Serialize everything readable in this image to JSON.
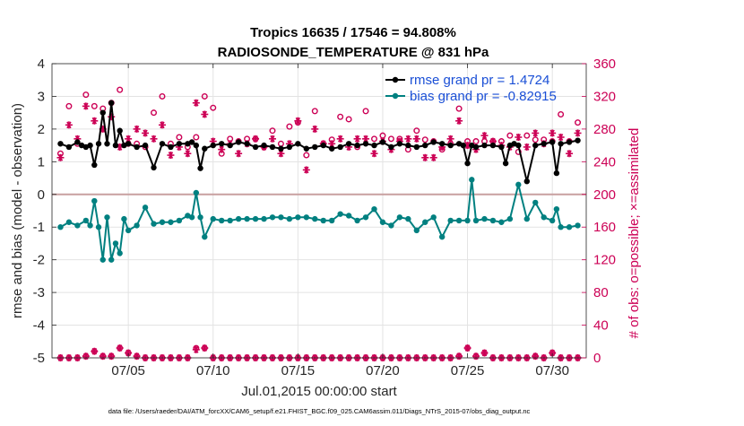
{
  "chart_data": {
    "type": "line",
    "title_line1": "Tropics 16635 / 17546 = 94.808%",
    "title_line2": "RADIOSONDE_TEMPERATURE @ 831 hPa",
    "xlabel": "Jul.01,2015 00:00:00 start",
    "ylabel_left": "rmse and bias (model - observation)",
    "ylabel_right": "# of obs: o=possible; ×=assimilated",
    "xlim": [
      0.5,
      32.0
    ],
    "ylim_left": [
      -5,
      4
    ],
    "ylim_right": [
      0,
      360
    ],
    "x_ticks": [
      5,
      10,
      15,
      20,
      25,
      30
    ],
    "x_tick_labels": [
      "07/05",
      "07/10",
      "07/15",
      "07/20",
      "07/25",
      "07/30"
    ],
    "y_ticks_left": [
      -5,
      -4,
      -3,
      -2,
      -1,
      0,
      1,
      2,
      3,
      4
    ],
    "y_ticks_left_labels": [
      "-5",
      "-4",
      "-3",
      "-2",
      "-1",
      "0",
      "1",
      "2",
      "3",
      "4"
    ],
    "y_ticks_right": [
      0,
      40,
      80,
      120,
      160,
      200,
      240,
      280,
      320,
      360
    ],
    "y_ticks_right_labels": [
      "0",
      "40",
      "80",
      "120",
      "160",
      "200",
      "240",
      "280",
      "320",
      "360"
    ],
    "legend": [
      "rmse grand pr = 1.4724",
      "bias grand pr = -0.82915"
    ],
    "footnote": "data file: /Users/raeder/DAI/ATM_forcXX/CAM6_setup/f.e21.FHIST_BGC.f09_025.CAM6assim.011/Diags_NTrS_2015-07/obs_diag_output.nc",
    "colors": {
      "rmse": "#000000",
      "bias": "#008080",
      "obs": "#cc0055",
      "zero_line": "#c8a0a0",
      "legend_text": "#1a4fd6"
    },
    "series": [
      {
        "name": "rmse",
        "x": [
          1,
          1.5,
          2,
          2.25,
          2.5,
          2.75,
          3,
          3.25,
          3.5,
          3.75,
          4,
          4.25,
          4.5,
          4.75,
          5,
          5.5,
          6,
          6.5,
          7,
          7.5,
          8,
          8.5,
          8.75,
          9,
          9.25,
          9.5,
          10,
          10.5,
          11,
          11.5,
          12,
          12.5,
          13,
          13.5,
          14,
          14.5,
          15,
          15.5,
          16,
          16.5,
          17,
          17.5,
          18,
          18.5,
          19,
          19.5,
          20,
          20.5,
          21,
          21.5,
          22,
          22.5,
          23,
          23.5,
          24,
          24.5,
          24.75,
          25,
          25.25,
          25.5,
          26,
          26.5,
          27,
          27.25,
          27.5,
          27.75,
          28,
          28.5,
          29,
          29.5,
          30,
          30.25,
          30.5,
          31,
          31.5
        ],
        "values": [
          1.55,
          1.45,
          1.6,
          1.5,
          1.45,
          1.5,
          0.9,
          1.55,
          2.5,
          1.55,
          2.8,
          1.5,
          1.95,
          1.5,
          1.55,
          1.45,
          1.5,
          0.82,
          1.55,
          1.45,
          1.55,
          1.55,
          1.6,
          1.5,
          0.8,
          1.4,
          1.5,
          1.55,
          1.5,
          1.6,
          1.55,
          1.45,
          1.5,
          1.45,
          1.4,
          1.45,
          1.55,
          1.4,
          1.45,
          1.5,
          1.4,
          1.45,
          1.55,
          1.5,
          1.55,
          1.5,
          1.6,
          1.45,
          1.55,
          1.5,
          1.45,
          1.5,
          1.6,
          1.55,
          1.5,
          1.55,
          1.5,
          0.95,
          1.5,
          1.45,
          1.5,
          1.5,
          1.45,
          0.95,
          1.5,
          1.55,
          1.5,
          0.4,
          1.5,
          1.55,
          1.6,
          0.65,
          1.55,
          1.6,
          1.65
        ]
      },
      {
        "name": "bias",
        "x": [
          1,
          1.5,
          2,
          2.5,
          2.75,
          3,
          3.25,
          3.5,
          3.75,
          4,
          4.25,
          4.5,
          4.75,
          5,
          5.5,
          6,
          6.5,
          7,
          7.5,
          8,
          8.5,
          8.75,
          9,
          9.25,
          9.5,
          10,
          10.5,
          11,
          11.5,
          12,
          12.5,
          13,
          13.5,
          14,
          14.5,
          15,
          15.5,
          16,
          16.5,
          17,
          17.5,
          18,
          18.5,
          19,
          19.5,
          20,
          20.5,
          21,
          21.5,
          22,
          22.5,
          23,
          23.5,
          24,
          24.5,
          25,
          25.25,
          25.5,
          26,
          26.5,
          27,
          27.5,
          28,
          28.5,
          29,
          29.5,
          30,
          30.25,
          30.5,
          31,
          31.5
        ],
        "values": [
          -1.0,
          -0.85,
          -0.95,
          -0.8,
          -0.95,
          -0.2,
          -1.0,
          -2.0,
          -0.7,
          -2.0,
          -1.5,
          -1.8,
          -0.75,
          -1.1,
          -0.95,
          -0.4,
          -0.9,
          -0.85,
          -0.85,
          -0.8,
          -0.65,
          -0.7,
          0.05,
          -0.7,
          -1.3,
          -0.75,
          -0.8,
          -0.8,
          -0.75,
          -0.75,
          -0.75,
          -0.75,
          -0.7,
          -0.7,
          -0.75,
          -0.7,
          -0.7,
          -0.75,
          -0.8,
          -0.8,
          -0.6,
          -0.65,
          -0.8,
          -0.7,
          -0.45,
          -0.85,
          -0.95,
          -0.7,
          -0.75,
          -1.1,
          -0.85,
          -0.7,
          -1.3,
          -0.8,
          -0.8,
          -0.8,
          0.45,
          -0.8,
          -0.75,
          -0.8,
          -0.85,
          -0.75,
          0.3,
          -0.75,
          -0.25,
          -0.7,
          -0.8,
          -0.45,
          -1.0,
          -1.0,
          -0.95
        ]
      },
      {
        "name": "obs_possible",
        "x": [
          1,
          1.5,
          2,
          2.5,
          3,
          3.5,
          4,
          4.5,
          5,
          5.5,
          6,
          6.5,
          7,
          7.5,
          8,
          8.5,
          9,
          9.5,
          10,
          10.5,
          11,
          11.5,
          12,
          12.5,
          13,
          13.5,
          14,
          14.5,
          15,
          15.5,
          16,
          16.5,
          17,
          17.5,
          18,
          18.5,
          19,
          19.5,
          20,
          20.5,
          21,
          21.5,
          22,
          22.5,
          23,
          23.5,
          24,
          24.5,
          25,
          25.5,
          26,
          26.5,
          27,
          27.5,
          28,
          28.5,
          29,
          29.5,
          30,
          30.5,
          31,
          31.5
        ],
        "values": [
          250,
          308,
          262,
          322,
          308,
          305,
          312,
          328,
          262,
          262,
          258,
          300,
          320,
          262,
          270,
          258,
          270,
          320,
          306,
          250,
          268,
          265,
          268,
          268,
          258,
          278,
          262,
          283,
          288,
          248,
          302,
          262,
          267,
          295,
          292,
          258,
          302,
          268,
          272,
          268,
          268,
          255,
          278,
          267,
          265,
          255,
          262,
          305,
          265,
          265,
          265,
          265,
          265,
          272,
          252,
          272,
          267,
          267,
          265,
          298,
          265,
          288
        ]
      },
      {
        "name": "obs_assimilated",
        "x": [
          1,
          1.5,
          2,
          2.5,
          3,
          3.5,
          4,
          4.5,
          5,
          5.5,
          6,
          6.5,
          7,
          7.5,
          8,
          8.5,
          9,
          9.5,
          10,
          10.5,
          11,
          11.5,
          12,
          12.5,
          13,
          13.5,
          14,
          14.5,
          15,
          15.5,
          16,
          16.5,
          17,
          17.5,
          18,
          18.5,
          19,
          19.5,
          20,
          20.5,
          21,
          21.5,
          22,
          22.5,
          23,
          23.5,
          24,
          24.5,
          25,
          25.5,
          26,
          26.5,
          27,
          27.5,
          28,
          28.5,
          29,
          29.5,
          30,
          30.5,
          31,
          31.5
        ],
        "values": [
          245,
          285,
          268,
          308,
          290,
          280,
          295,
          258,
          268,
          280,
          275,
          268,
          285,
          248,
          258,
          250,
          312,
          298,
          265,
          255,
          262,
          250,
          262,
          268,
          258,
          268,
          250,
          262,
          290,
          230,
          280,
          262,
          262,
          268,
          258,
          268,
          268,
          250,
          265,
          255,
          265,
          268,
          268,
          245,
          245,
          258,
          268,
          290,
          260,
          255,
          272,
          265,
          260,
          258,
          270,
          258,
          275,
          262,
          275,
          270,
          250,
          275
        ]
      },
      {
        "name": "obs_possible_low",
        "x": [
          1,
          1.5,
          2,
          2.5,
          3,
          3.5,
          4,
          4.5,
          5,
          5.5,
          6,
          6.5,
          7,
          7.5,
          8,
          8.5,
          9,
          9.5,
          10,
          10.5,
          11,
          11.5,
          12,
          12.5,
          13,
          13.5,
          14,
          14.5,
          15,
          15.5,
          16,
          16.5,
          17,
          17.5,
          18,
          18.5,
          19,
          19.5,
          20,
          20.5,
          21,
          21.5,
          22,
          22.5,
          23,
          23.5,
          24,
          24.5,
          25,
          25.5,
          26,
          26.5,
          27,
          27.5,
          28,
          28.5,
          29,
          29.5,
          30,
          30.5,
          31,
          31.5
        ],
        "values": [
          0,
          0,
          0,
          2,
          8,
          2,
          2,
          12,
          6,
          2,
          0,
          0,
          0,
          0,
          0,
          0,
          12,
          12,
          0,
          0,
          0,
          0,
          0,
          0,
          0,
          0,
          0,
          0,
          0,
          0,
          0,
          0,
          0,
          0,
          0,
          0,
          0,
          0,
          0,
          0,
          0,
          0,
          0,
          0,
          0,
          0,
          0,
          2,
          12,
          2,
          6,
          0,
          0,
          0,
          0,
          0,
          2,
          0,
          6,
          0,
          0,
          0
        ]
      },
      {
        "name": "obs_assimilated_low",
        "x": [
          1,
          1.5,
          2,
          2.5,
          3,
          3.5,
          4,
          4.5,
          5,
          5.5,
          6,
          6.5,
          7,
          7.5,
          8,
          8.5,
          9,
          9.5,
          10,
          10.5,
          11,
          11.5,
          12,
          12.5,
          13,
          13.5,
          14,
          14.5,
          15,
          15.5,
          16,
          16.5,
          17,
          17.5,
          18,
          18.5,
          19,
          19.5,
          20,
          20.5,
          21,
          21.5,
          22,
          22.5,
          23,
          23.5,
          24,
          24.5,
          25,
          25.5,
          26,
          26.5,
          27,
          27.5,
          28,
          28.5,
          29,
          29.5,
          30,
          30.5,
          31,
          31.5
        ],
        "values": [
          0,
          0,
          0,
          2,
          8,
          2,
          2,
          12,
          6,
          2,
          0,
          0,
          0,
          0,
          0,
          0,
          10,
          12,
          0,
          0,
          0,
          0,
          0,
          0,
          0,
          0,
          0,
          0,
          0,
          0,
          0,
          0,
          0,
          0,
          0,
          0,
          0,
          0,
          0,
          0,
          0,
          0,
          0,
          0,
          0,
          0,
          0,
          2,
          12,
          2,
          6,
          0,
          0,
          0,
          0,
          0,
          2,
          0,
          6,
          0,
          0,
          0
        ]
      }
    ]
  }
}
